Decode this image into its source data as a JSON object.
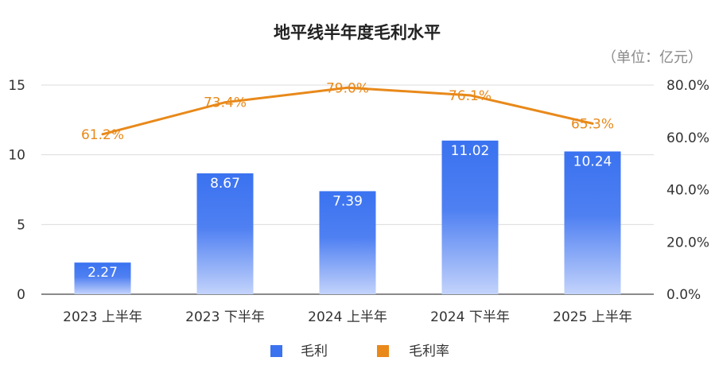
{
  "chart_data": {
    "type": "bar",
    "title": "地平线半年度毛利水平",
    "unit_label": "（单位：亿元）",
    "categories": [
      "2023 上半年",
      "2023 下半年",
      "2024 上半年",
      "2024 下半年",
      "2025 上半年"
    ],
    "y_left": {
      "min": 0,
      "max": 15,
      "ticks": [
        "0",
        "5",
        "10",
        "15"
      ]
    },
    "y_right": {
      "min": 0,
      "max": 80,
      "ticks": [
        "0.0%",
        "20.0%",
        "40.0%",
        "60.0%",
        "80.0%"
      ]
    },
    "grid": true,
    "legend_position": "bottom",
    "series": [
      {
        "name": "毛利",
        "type": "bar",
        "axis": "left",
        "color": "#3a72f0",
        "values": [
          2.27,
          8.67,
          7.39,
          11.02,
          10.24
        ],
        "labels": [
          "2.27",
          "8.67",
          "7.39",
          "11.02",
          "10.24"
        ]
      },
      {
        "name": "毛利率",
        "type": "line",
        "axis": "right",
        "color": "#e8891a",
        "values": [
          61.2,
          73.4,
          79.0,
          76.1,
          65.3
        ],
        "labels": [
          "61.2%",
          "73.4%",
          "79.0%",
          "76.1%",
          "65.3%"
        ]
      }
    ]
  }
}
